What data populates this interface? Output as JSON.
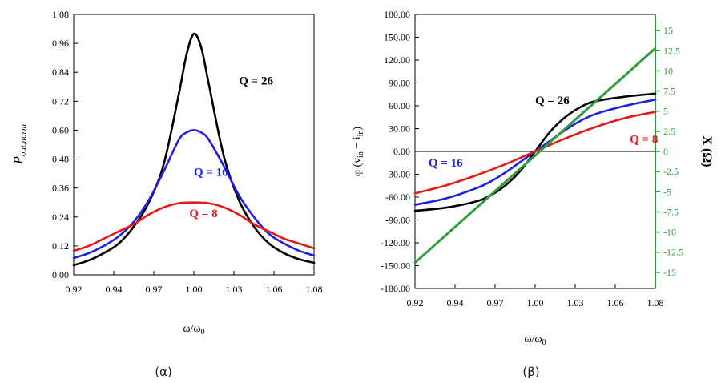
{
  "colors": {
    "black": "#000000",
    "blue": "#1f1fe0",
    "red": "#e31a1a",
    "green": "#2e9d3a",
    "axis": "#000000"
  },
  "chart_data": [
    {
      "type": "line",
      "caption": "(α)",
      "xlabel": "ω/ω0",
      "ylabel": "Pout,norm",
      "xlim": [
        0.92,
        1.08
      ],
      "ylim": [
        0,
        1.08
      ],
      "x_ticks": [
        "0.92",
        "0.94",
        "0.97",
        "1.00",
        "1.03",
        "1.06",
        "1.08"
      ],
      "x_tick_values": [
        0.92,
        0.946667,
        0.973333,
        1.0,
        1.026667,
        1.053333,
        1.08
      ],
      "y_ticks": [
        "0.00",
        "0.12",
        "0.24",
        "0.36",
        "0.48",
        "0.60",
        "0.72",
        "0.84",
        "0.96",
        "1.08"
      ],
      "y_tick_values": [
        0,
        0.12,
        0.24,
        0.36,
        0.48,
        0.6,
        0.72,
        0.84,
        0.96,
        1.08
      ],
      "grid": false,
      "series": [
        {
          "name": "Q = 26",
          "color": "black",
          "label_at": [
            1.03,
            0.79
          ],
          "x": [
            0.92,
            0.93,
            0.94,
            0.95,
            0.96,
            0.97,
            0.98,
            0.99,
            0.995,
            1.0,
            1.005,
            1.01,
            1.02,
            1.03,
            1.04,
            1.05,
            1.06,
            1.07,
            1.08
          ],
          "y": [
            0.04,
            0.06,
            0.09,
            0.13,
            0.2,
            0.3,
            0.46,
            0.75,
            0.91,
            1.0,
            0.94,
            0.79,
            0.49,
            0.31,
            0.2,
            0.13,
            0.09,
            0.065,
            0.05
          ]
        },
        {
          "name": "Q = 16",
          "color": "blue",
          "label_at": [
            1.0,
            0.41
          ],
          "x": [
            0.92,
            0.93,
            0.94,
            0.95,
            0.96,
            0.97,
            0.98,
            0.99,
            0.995,
            1.0,
            1.005,
            1.01,
            1.02,
            1.03,
            1.04,
            1.05,
            1.06,
            1.07,
            1.08
          ],
          "y": [
            0.07,
            0.09,
            0.12,
            0.16,
            0.22,
            0.31,
            0.43,
            0.56,
            0.59,
            0.6,
            0.59,
            0.56,
            0.45,
            0.33,
            0.24,
            0.17,
            0.13,
            0.1,
            0.08
          ]
        },
        {
          "name": "Q = 8",
          "color": "red",
          "label_at": [
            0.997,
            0.24
          ],
          "x": [
            0.92,
            0.93,
            0.94,
            0.95,
            0.96,
            0.97,
            0.98,
            0.99,
            1.0,
            1.01,
            1.02,
            1.03,
            1.04,
            1.05,
            1.06,
            1.07,
            1.08
          ],
          "y": [
            0.1,
            0.12,
            0.15,
            0.18,
            0.21,
            0.25,
            0.28,
            0.297,
            0.3,
            0.297,
            0.28,
            0.25,
            0.21,
            0.18,
            0.15,
            0.13,
            0.11
          ]
        }
      ]
    },
    {
      "type": "line",
      "caption": "(β)",
      "xlabel": "ω/ω0",
      "ylabel": "φ (vin − iin)",
      "y2label": "X (Ω)",
      "xlim": [
        0.92,
        1.08
      ],
      "ylim": [
        -180,
        180
      ],
      "y2lim": [
        -17,
        17
      ],
      "x_ticks": [
        "0.92",
        "0.94",
        "0.97",
        "1.00",
        "1.03",
        "1.06",
        "1.08"
      ],
      "x_tick_values": [
        0.92,
        0.946667,
        0.973333,
        1.0,
        1.026667,
        1.053333,
        1.08
      ],
      "y_ticks": [
        "180.00",
        "150.00",
        "120.00",
        "90.00",
        "60.00",
        "30.00",
        "0.00",
        "-30.00",
        "-60.00",
        "-90.00",
        "-120.00",
        "-150.00",
        "-180.00"
      ],
      "y_tick_values": [
        180,
        150,
        120,
        90,
        60,
        30,
        0,
        -30,
        -60,
        -90,
        -120,
        -150,
        -180
      ],
      "y2_ticks": [
        "15",
        "12.5",
        "10",
        "7.5",
        "5",
        "2.5",
        "0",
        "-2.5",
        "-5",
        "-7.5",
        "-10",
        "-12.5",
        "-15"
      ],
      "y2_tick_values": [
        15,
        12.5,
        10,
        7.5,
        5,
        2.5,
        0,
        -2.5,
        -5,
        -7.5,
        -10,
        -12.5,
        -15
      ],
      "grid": false,
      "series": [
        {
          "name": "Q = 26",
          "color": "black",
          "label_at": [
            1.0,
            62
          ],
          "x": [
            0.92,
            0.94,
            0.96,
            0.97,
            0.98,
            0.99,
            1.0,
            1.01,
            1.02,
            1.03,
            1.04,
            1.06,
            1.08
          ],
          "y": [
            -78,
            -74,
            -66,
            -58,
            -45,
            -26,
            0,
            26,
            45,
            58,
            66,
            72,
            76
          ]
        },
        {
          "name": "Q = 16",
          "color": "blue",
          "label_at": [
            0.929,
            -20
          ],
          "x": [
            0.92,
            0.94,
            0.96,
            0.97,
            0.98,
            0.99,
            1.0,
            1.01,
            1.02,
            1.03,
            1.04,
            1.06,
            1.08
          ],
          "y": [
            -70,
            -62,
            -49,
            -40,
            -28,
            -14,
            0,
            14,
            28,
            40,
            49,
            60,
            68
          ]
        },
        {
          "name": "Q = 8",
          "color": "red",
          "label_at": [
            1.063,
            11
          ],
          "x": [
            0.92,
            0.94,
            0.96,
            0.98,
            1.0,
            1.02,
            1.04,
            1.06,
            1.08
          ],
          "y": [
            -55,
            -45,
            -32,
            -17,
            0,
            17,
            32,
            44,
            52
          ]
        },
        {
          "name": "X (Ω)",
          "color": "green",
          "axis": "y2",
          "x": [
            0.92,
            1.08
          ],
          "y": [
            -13.8,
            12.8
          ]
        }
      ],
      "zero_line": true
    }
  ]
}
